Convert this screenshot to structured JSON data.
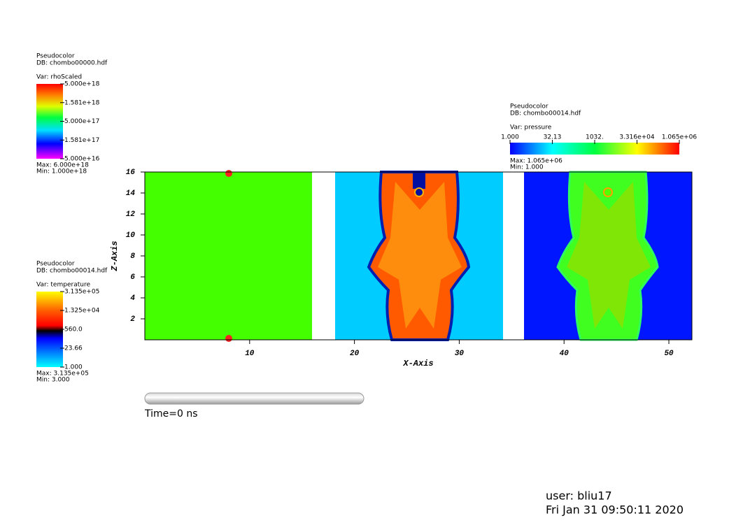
{
  "chart_data": {
    "type": "pseudocolor",
    "x_label": "X-Axis",
    "y_label": "Z-Axis",
    "xlim": [
      0,
      52.2
    ],
    "ylim": [
      0,
      16
    ],
    "xticks": [
      10,
      20,
      30,
      40,
      50
    ],
    "yticks": [
      2,
      4,
      6,
      8,
      10,
      12,
      14,
      16
    ]
  },
  "legends": [
    {
      "plot": "Pseudocolor",
      "db": "DB: chombo00000.hdf",
      "var": "Var: rhoScaled",
      "labels": [
        "5.000e+18",
        "1.581e+18",
        "5.000e+17",
        "1.581e+17",
        "5.000e+16"
      ],
      "max": "Max:  6.000e+18",
      "min": "Min:  1.000e+18"
    },
    {
      "plot": "Pseudocolor",
      "db": "DB: chombo00014.hdf",
      "var": "Var: pressure",
      "labels": [
        "1.000",
        "32.13",
        "1032.",
        "3.316e+04",
        "1.065e+06"
      ],
      "max": "Max:  1.065e+06",
      "min": "Min:  1.000"
    },
    {
      "plot": "Pseudocolor",
      "db": "DB: chombo00014.hdf",
      "var": "Var: temperature",
      "labels": [
        "3.135e+05",
        "1.325e+04",
        "560.0",
        "23.66",
        "1.000"
      ],
      "max": "Max:  3.135e+05",
      "min": "Min:  3.000"
    }
  ],
  "time_label": "Time=0 ns",
  "user": "user: bliu17",
  "date": "Fri Jan 31 09:50:11 2020"
}
